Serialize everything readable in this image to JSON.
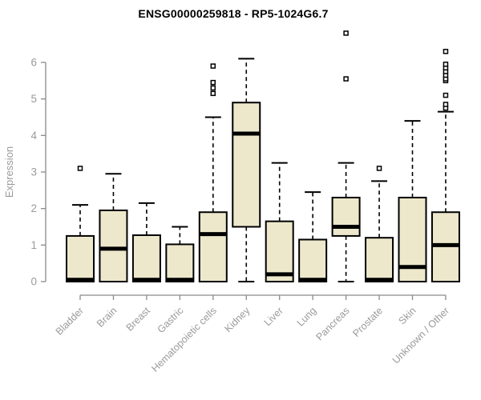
{
  "window": {
    "background": "#FFFFFF"
  },
  "chart_data": {
    "type": "boxplot",
    "title": "ENSG00000259818 - RP5-1024G6.7",
    "ylabel": "Expression",
    "xlabel": "",
    "ylim": [
      0,
      6
    ],
    "yticks": [
      0,
      1,
      2,
      3,
      4,
      5,
      6
    ],
    "grid": false,
    "legend": false,
    "categories": [
      "Bladder",
      "Brain",
      "Breast",
      "Gastric",
      "Hematopoietic cells",
      "Kidney",
      "Liver",
      "Lung",
      "Pancreas",
      "Prostate",
      "Skin",
      "Unknown / Other"
    ],
    "series": [
      {
        "category": "Bladder",
        "whisker_low": 0,
        "q1": 0,
        "median": 0.05,
        "q3": 1.25,
        "whisker_high": 2.1,
        "outliers": [
          3.1
        ]
      },
      {
        "category": "Brain",
        "whisker_low": 0,
        "q1": 0,
        "median": 0.9,
        "q3": 1.95,
        "whisker_high": 2.95,
        "outliers": []
      },
      {
        "category": "Breast",
        "whisker_low": 0,
        "q1": 0,
        "median": 0.05,
        "q3": 1.27,
        "whisker_high": 2.15,
        "outliers": []
      },
      {
        "category": "Gastric",
        "whisker_low": 0,
        "q1": 0,
        "median": 0.05,
        "q3": 1.02,
        "whisker_high": 1.5,
        "outliers": []
      },
      {
        "category": "Hematopoietic cells",
        "whisker_low": 0,
        "q1": 0,
        "median": 1.3,
        "q3": 1.9,
        "whisker_high": 4.5,
        "outliers": [
          5.15,
          5.3,
          5.45,
          5.9
        ]
      },
      {
        "category": "Kidney",
        "whisker_low": 0,
        "q1": 1.5,
        "median": 4.05,
        "q3": 4.9,
        "whisker_high": 6.1,
        "outliers": []
      },
      {
        "category": "Liver",
        "whisker_low": 0,
        "q1": 0,
        "median": 0.2,
        "q3": 1.65,
        "whisker_high": 3.25,
        "outliers": []
      },
      {
        "category": "Lung",
        "whisker_low": 0,
        "q1": 0,
        "median": 0.05,
        "q3": 1.15,
        "whisker_high": 2.45,
        "outliers": []
      },
      {
        "category": "Pancreas",
        "whisker_low": 0,
        "q1": 1.25,
        "median": 1.5,
        "q3": 2.3,
        "whisker_high": 3.25,
        "outliers": [
          5.55,
          6.8
        ]
      },
      {
        "category": "Prostate",
        "whisker_low": 0,
        "q1": 0,
        "median": 0.05,
        "q3": 1.2,
        "whisker_high": 2.75,
        "outliers": [
          3.1
        ]
      },
      {
        "category": "Skin",
        "whisker_low": 0,
        "q1": 0,
        "median": 0.4,
        "q3": 2.3,
        "whisker_high": 4.4,
        "outliers": []
      },
      {
        "category": "Unknown / Other",
        "whisker_low": 0,
        "q1": 0,
        "median": 1.0,
        "q3": 1.9,
        "whisker_high": 4.65,
        "outliers": [
          4.75,
          4.85,
          5.1,
          5.5,
          5.55,
          5.65,
          5.75,
          5.85,
          5.95,
          6.3
        ]
      }
    ],
    "colors": {
      "box_fill": "#EDE8CC",
      "box_border": "#000000",
      "median": "#000000",
      "whisker": "#000000",
      "outlier_border": "#000000",
      "outlier_fill": "#FFFFFF",
      "axis_line": "#8A8A8A",
      "tick_label": "#9A9A9A",
      "axis_label": "#9A9A9A",
      "title": "#000000",
      "background": "#FFFFFF"
    }
  }
}
